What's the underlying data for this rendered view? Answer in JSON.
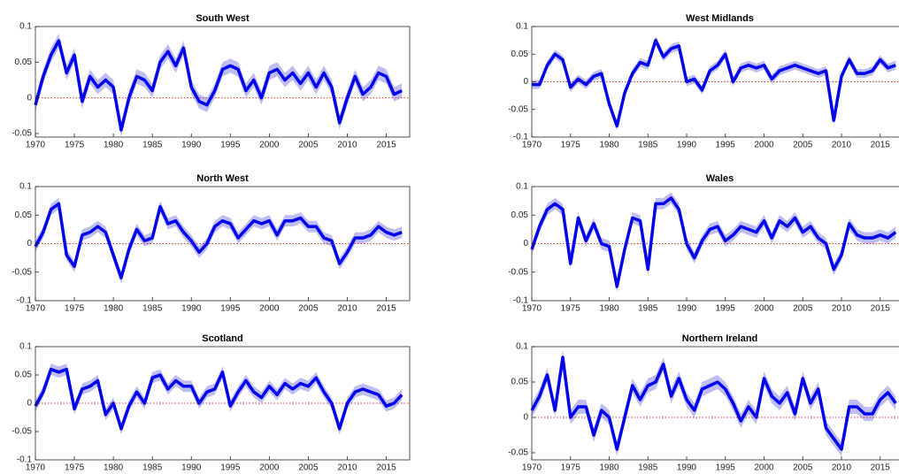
{
  "chart_data": [
    {
      "type": "line",
      "title": "South West",
      "x": [
        1970,
        1971,
        1972,
        1973,
        1974,
        1975,
        1976,
        1977,
        1978,
        1979,
        1980,
        1981,
        1982,
        1983,
        1984,
        1985,
        1986,
        1987,
        1988,
        1989,
        1990,
        1991,
        1992,
        1993,
        1994,
        1995,
        1996,
        1997,
        1998,
        1999,
        2000,
        2001,
        2002,
        2003,
        2004,
        2005,
        2006,
        2007,
        2008,
        2009,
        2010,
        2011,
        2012,
        2013,
        2014,
        2015,
        2016,
        2017
      ],
      "values": [
        -0.01,
        0.03,
        0.06,
        0.08,
        0.035,
        0.06,
        -0.005,
        0.03,
        0.015,
        0.025,
        0.015,
        -0.045,
        0,
        0.03,
        0.025,
        0.01,
        0.05,
        0.065,
        0.045,
        0.07,
        0.015,
        -0.005,
        -0.01,
        0.01,
        0.04,
        0.045,
        0.04,
        0.01,
        0.025,
        0,
        0.035,
        0.04,
        0.025,
        0.035,
        0.02,
        0.035,
        0.015,
        0.035,
        0.015,
        -0.035,
        0,
        0.03,
        0.005,
        0.015,
        0.035,
        0.03,
        0.005,
        0.01
      ],
      "band": 0.01,
      "hline": 0,
      "color": "#0000ee",
      "band_color": "#b3b3f2",
      "xlim": [
        1970,
        2018
      ],
      "xticks": [
        1970,
        1975,
        1980,
        1985,
        1990,
        1995,
        2000,
        2005,
        2010,
        2015
      ],
      "ylim": [
        -0.055,
        0.1
      ],
      "yticks": [
        -0.05,
        0,
        0.05,
        0.1
      ]
    },
    {
      "type": "line",
      "title": "West Midlands",
      "x": [
        1970,
        1971,
        1972,
        1973,
        1974,
        1975,
        1976,
        1977,
        1978,
        1979,
        1980,
        1981,
        1982,
        1983,
        1984,
        1985,
        1986,
        1987,
        1988,
        1989,
        1990,
        1991,
        1992,
        1993,
        1994,
        1995,
        1996,
        1997,
        1998,
        1999,
        2000,
        2001,
        2002,
        2003,
        2004,
        2005,
        2006,
        2007,
        2008,
        2009,
        2010,
        2011,
        2012,
        2013,
        2014,
        2015,
        2016,
        2017
      ],
      "values": [
        -0.005,
        -0.005,
        0.03,
        0.05,
        0.04,
        -0.01,
        0.005,
        -0.005,
        0.01,
        0.015,
        -0.04,
        -0.08,
        -0.02,
        0.015,
        0.035,
        0.03,
        0.075,
        0.045,
        0.06,
        0.065,
        0,
        0.005,
        -0.015,
        0.02,
        0.03,
        0.05,
        0,
        0.025,
        0.03,
        0.025,
        0.03,
        0.005,
        0.02,
        0.025,
        0.03,
        0.025,
        0.02,
        0.015,
        0.02,
        -0.07,
        0.01,
        0.04,
        0.015,
        0.015,
        0.02,
        0.04,
        0.025,
        0.03
      ],
      "band": 0.008,
      "hline": 0,
      "color": "#0000ee",
      "band_color": "#b3b3f2",
      "xlim": [
        1970,
        2018
      ],
      "xticks": [
        1970,
        1975,
        1980,
        1985,
        1990,
        1995,
        2000,
        2005,
        2010,
        2015
      ],
      "ylim": [
        -0.1,
        0.1
      ],
      "yticks": [
        -0.1,
        -0.05,
        0,
        0.05,
        0.1
      ]
    },
    {
      "type": "line",
      "title": "North West",
      "x": [
        1970,
        1971,
        1972,
        1973,
        1974,
        1975,
        1976,
        1977,
        1978,
        1979,
        1980,
        1981,
        1982,
        1983,
        1984,
        1985,
        1986,
        1987,
        1988,
        1989,
        1990,
        1991,
        1992,
        1993,
        1994,
        1995,
        1996,
        1997,
        1998,
        1999,
        2000,
        2001,
        2002,
        2003,
        2004,
        2005,
        2006,
        2007,
        2008,
        2009,
        2010,
        2011,
        2012,
        2013,
        2014,
        2015,
        2016,
        2017
      ],
      "values": [
        -0.005,
        0.02,
        0.06,
        0.07,
        -0.02,
        -0.04,
        0.015,
        0.02,
        0.03,
        0.02,
        -0.02,
        -0.06,
        -0.01,
        0.025,
        0.005,
        0.01,
        0.065,
        0.035,
        0.04,
        0.02,
        0.005,
        -0.015,
        0,
        0.03,
        0.04,
        0.035,
        0.01,
        0.025,
        0.04,
        0.035,
        0.04,
        0.015,
        0.04,
        0.04,
        0.045,
        0.03,
        0.03,
        0.01,
        0.005,
        -0.035,
        -0.015,
        0.01,
        0.01,
        0.015,
        0.03,
        0.02,
        0.015,
        0.02
      ],
      "band": 0.01,
      "hline": 0,
      "color": "#0000ee",
      "band_color": "#b3b3f2",
      "xlim": [
        1970,
        2018
      ],
      "xticks": [
        1970,
        1975,
        1980,
        1985,
        1990,
        1995,
        2000,
        2005,
        2010,
        2015
      ],
      "ylim": [
        -0.1,
        0.1
      ],
      "yticks": [
        -0.1,
        -0.05,
        0,
        0.05,
        0.1
      ]
    },
    {
      "type": "line",
      "title": "Wales",
      "x": [
        1970,
        1971,
        1972,
        1973,
        1974,
        1975,
        1976,
        1977,
        1978,
        1979,
        1980,
        1981,
        1982,
        1983,
        1984,
        1985,
        1986,
        1987,
        1988,
        1989,
        1990,
        1991,
        1992,
        1993,
        1994,
        1995,
        1996,
        1997,
        1998,
        1999,
        2000,
        2001,
        2002,
        2003,
        2004,
        2005,
        2006,
        2007,
        2008,
        2009,
        2010,
        2011,
        2012,
        2013,
        2014,
        2015,
        2016,
        2017
      ],
      "values": [
        -0.01,
        0.03,
        0.06,
        0.07,
        0.06,
        -0.035,
        0.045,
        0.005,
        0.035,
        0,
        -0.005,
        -0.075,
        -0.01,
        0.045,
        0.04,
        -0.045,
        0.07,
        0.07,
        0.08,
        0.06,
        0,
        -0.025,
        0.005,
        0.025,
        0.03,
        0.005,
        0.015,
        0.03,
        0.025,
        0.02,
        0.04,
        0.01,
        0.04,
        0.03,
        0.045,
        0.02,
        0.03,
        0.01,
        0,
        -0.045,
        -0.02,
        0.035,
        0.015,
        0.01,
        0.01,
        0.015,
        0.01,
        0.02
      ],
      "band": 0.01,
      "hline": 0,
      "color": "#0000ee",
      "band_color": "#b3b3f2",
      "xlim": [
        1970,
        2018
      ],
      "xticks": [
        1970,
        1975,
        1980,
        1985,
        1990,
        1995,
        2000,
        2005,
        2010,
        2015
      ],
      "ylim": [
        -0.1,
        0.1
      ],
      "yticks": [
        -0.1,
        -0.05,
        0,
        0.05,
        0.1
      ]
    },
    {
      "type": "line",
      "title": "Scotland",
      "x": [
        1970,
        1971,
        1972,
        1973,
        1974,
        1975,
        1976,
        1977,
        1978,
        1979,
        1980,
        1981,
        1982,
        1983,
        1984,
        1985,
        1986,
        1987,
        1988,
        1989,
        1990,
        1991,
        1992,
        1993,
        1994,
        1995,
        1996,
        1997,
        1998,
        1999,
        2000,
        2001,
        2002,
        2003,
        2004,
        2005,
        2006,
        2007,
        2008,
        2009,
        2010,
        2011,
        2012,
        2013,
        2014,
        2015,
        2016,
        2017
      ],
      "values": [
        -0.005,
        0.02,
        0.06,
        0.055,
        0.06,
        -0.01,
        0.025,
        0.03,
        0.04,
        -0.02,
        0,
        -0.045,
        -0.005,
        0.02,
        0,
        0.045,
        0.05,
        0.025,
        0.04,
        0.03,
        0.03,
        0,
        0.02,
        0.025,
        0.055,
        -0.005,
        0.02,
        0.04,
        0.02,
        0.01,
        0.03,
        0.015,
        0.035,
        0.025,
        0.035,
        0.03,
        0.045,
        0.02,
        0,
        -0.045,
        0,
        0.02,
        0.025,
        0.02,
        0.015,
        -0.005,
        0,
        0.015
      ],
      "band": 0.01,
      "hline": 0,
      "color": "#0000ee",
      "band_color": "#b3b3f2",
      "xlim": [
        1970,
        2018
      ],
      "xticks": [
        1970,
        1975,
        1980,
        1985,
        1990,
        1995,
        2000,
        2005,
        2010,
        2015
      ],
      "ylim": [
        -0.1,
        0.1
      ],
      "yticks": [
        -0.1,
        -0.05,
        0,
        0.05,
        0.1
      ]
    },
    {
      "type": "line",
      "title": "Northern Ireland",
      "x": [
        1970,
        1971,
        1972,
        1973,
        1974,
        1975,
        1976,
        1977,
        1978,
        1979,
        1980,
        1981,
        1982,
        1983,
        1984,
        1985,
        1986,
        1987,
        1988,
        1989,
        1990,
        1991,
        1992,
        1993,
        1994,
        1995,
        1996,
        1997,
        1998,
        1999,
        2000,
        2001,
        2002,
        2003,
        2004,
        2005,
        2006,
        2007,
        2008,
        2009,
        2010,
        2011,
        2012,
        2013,
        2014,
        2015,
        2016,
        2017
      ],
      "values": [
        0.01,
        0.03,
        0.06,
        0.01,
        0.085,
        0,
        0.015,
        0.015,
        -0.025,
        0.01,
        0,
        -0.045,
        0,
        0.045,
        0.025,
        0.045,
        0.05,
        0.075,
        0.03,
        0.055,
        0.025,
        0.01,
        0.04,
        0.045,
        0.05,
        0.04,
        0.02,
        -0.005,
        0.015,
        0,
        0.055,
        0.03,
        0.02,
        0.035,
        0.005,
        0.055,
        0.02,
        0.04,
        -0.015,
        -0.03,
        -0.045,
        0.015,
        0.015,
        0.005,
        0.005,
        0.025,
        0.035,
        0.02
      ],
      "band": 0.01,
      "hline": 0,
      "color": "#0000ee",
      "band_color": "#b3b3f2",
      "xlim": [
        1970,
        2018
      ],
      "xticks": [
        1970,
        1975,
        1980,
        1985,
        1990,
        1995,
        2000,
        2005,
        2010,
        2015
      ],
      "ylim": [
        -0.06,
        0.1
      ],
      "yticks": [
        -0.05,
        0,
        0.05,
        0.1
      ]
    }
  ]
}
